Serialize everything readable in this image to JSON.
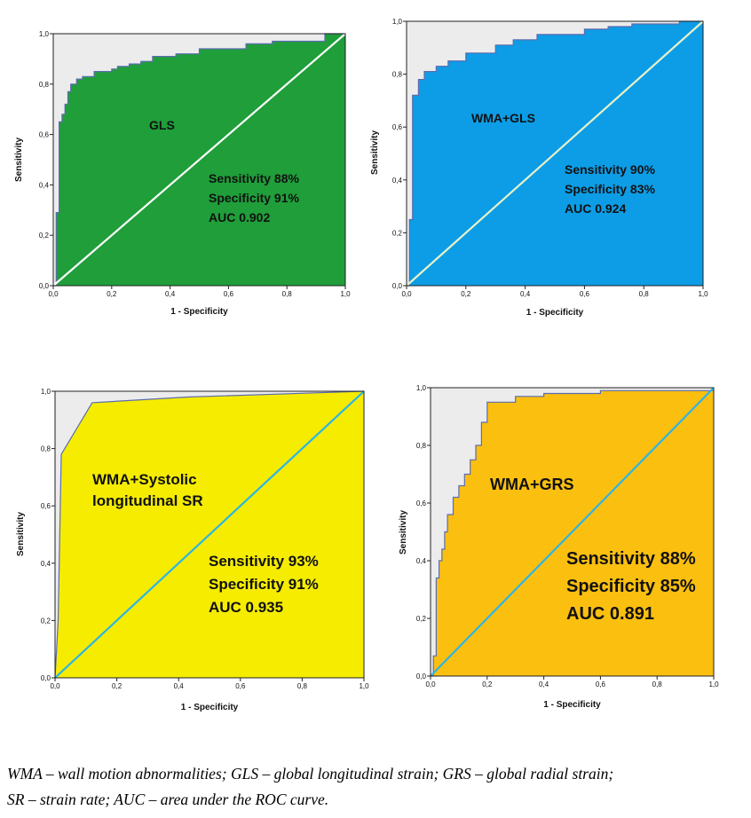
{
  "chart_data": [
    {
      "type": "area",
      "title": "GLS",
      "xlabel": "1 - Specificity",
      "ylabel": "Sensitivity",
      "xlim": [
        0,
        1
      ],
      "ylim": [
        0,
        1
      ],
      "xticks": [
        "0,0",
        "0,2",
        "0,4",
        "0,6",
        "0,8",
        "1,0"
      ],
      "yticks": [
        "0,0",
        "0,2",
        "0,4",
        "0,6",
        "0,8",
        "1,0"
      ],
      "stats": [
        "Sensitivity 88%",
        "Specificity 91%",
        "AUC 0.902"
      ],
      "fill_color": "#1f9e3a",
      "diagonal_color": "#ffffff",
      "series": [
        {
          "x": [
            0,
            0.01,
            0.01,
            0.02,
            0.02,
            0.03,
            0.03,
            0.04,
            0.04,
            0.05,
            0.05,
            0.06,
            0.06,
            0.08,
            0.08,
            0.1,
            0.1,
            0.14,
            0.14,
            0.2,
            0.2,
            0.22,
            0.22,
            0.26,
            0.26,
            0.3,
            0.3,
            0.34,
            0.34,
            0.42,
            0.42,
            0.5,
            0.5,
            0.66,
            0.66,
            0.75,
            0.75,
            0.93,
            0.93,
            1.0
          ],
          "y": [
            0,
            0,
            0.29,
            0.29,
            0.65,
            0.65,
            0.68,
            0.68,
            0.72,
            0.72,
            0.77,
            0.77,
            0.8,
            0.8,
            0.82,
            0.82,
            0.83,
            0.83,
            0.85,
            0.85,
            0.86,
            0.86,
            0.87,
            0.87,
            0.88,
            0.88,
            0.89,
            0.89,
            0.91,
            0.91,
            0.92,
            0.92,
            0.94,
            0.94,
            0.96,
            0.96,
            0.97,
            0.97,
            1.0,
            1.0
          ]
        }
      ]
    },
    {
      "type": "area",
      "title": "WMA+GLS",
      "xlabel": "1 - Specificity",
      "ylabel": "Sensitivity",
      "xlim": [
        0,
        1
      ],
      "ylim": [
        0,
        1
      ],
      "xticks": [
        "0,0",
        "0,2",
        "0,4",
        "0,6",
        "0,8",
        "1,0"
      ],
      "yticks": [
        "0,0",
        "0,2",
        "0,4",
        "0,6",
        "0,8",
        "1,0"
      ],
      "stats": [
        "Sensitivity 90%",
        "Specificity 83%",
        "AUC 0.924"
      ],
      "fill_color": "#0c9de6",
      "diagonal_color": "#e8f1c8",
      "series": [
        {
          "x": [
            0,
            0.01,
            0.01,
            0.02,
            0.02,
            0.04,
            0.04,
            0.06,
            0.06,
            0.1,
            0.1,
            0.14,
            0.14,
            0.2,
            0.2,
            0.3,
            0.3,
            0.36,
            0.36,
            0.44,
            0.44,
            0.6,
            0.6,
            0.68,
            0.68,
            0.76,
            0.76,
            0.92,
            0.92,
            1.0
          ],
          "y": [
            0,
            0,
            0.25,
            0.25,
            0.72,
            0.72,
            0.78,
            0.78,
            0.81,
            0.81,
            0.83,
            0.83,
            0.85,
            0.85,
            0.88,
            0.88,
            0.91,
            0.91,
            0.93,
            0.93,
            0.95,
            0.95,
            0.97,
            0.97,
            0.98,
            0.98,
            0.99,
            0.99,
            1.0,
            1.0
          ]
        }
      ]
    },
    {
      "type": "area",
      "title": "WMA+Systolic longitudinal SR",
      "title_lines": [
        "WMA+Systolic",
        "longitudinal SR"
      ],
      "xlabel": "1 - Specificity",
      "ylabel": "Sensitivity",
      "xlim": [
        0,
        1
      ],
      "ylim": [
        0,
        1
      ],
      "xticks": [
        "0,0",
        "0,2",
        "0,4",
        "0,6",
        "0,8",
        "1,0"
      ],
      "yticks": [
        "0,0",
        "0,2",
        "0,4",
        "0,6",
        "0,8",
        "1,0"
      ],
      "stats": [
        "Sensitivity 93%",
        "Specificity 91%",
        "AUC 0.935"
      ],
      "fill_color": "#f5ec00",
      "diagonal_color": "#2bb5e6",
      "series": [
        {
          "x": [
            0,
            0.01,
            0.02,
            0.12,
            0.43,
            1.0
          ],
          "y": [
            0,
            0.2,
            0.78,
            0.96,
            0.98,
            1.0
          ]
        }
      ]
    },
    {
      "type": "area",
      "title": "WMA+GRS",
      "xlabel": "1 - Specificity",
      "ylabel": "Sensitivity",
      "xlim": [
        0,
        1
      ],
      "ylim": [
        0,
        1
      ],
      "xticks": [
        "0,0",
        "0,2",
        "0,4",
        "0,6",
        "0,8",
        "1,0"
      ],
      "yticks": [
        "0,0",
        "0,2",
        "0,4",
        "0,6",
        "0,8",
        "1,0"
      ],
      "stats": [
        "Sensitivity 88%",
        "Specificity 85%",
        "AUC 0.891"
      ],
      "fill_color": "#fbbf10",
      "diagonal_color": "#2bb5e6",
      "series": [
        {
          "x": [
            0,
            0.01,
            0.01,
            0.02,
            0.02,
            0.03,
            0.03,
            0.04,
            0.04,
            0.05,
            0.05,
            0.06,
            0.06,
            0.08,
            0.08,
            0.1,
            0.1,
            0.12,
            0.12,
            0.14,
            0.14,
            0.16,
            0.16,
            0.18,
            0.18,
            0.2,
            0.2,
            0.3,
            0.3,
            0.4,
            0.4,
            0.6,
            0.6,
            1.0
          ],
          "y": [
            0,
            0,
            0.07,
            0.07,
            0.34,
            0.34,
            0.4,
            0.4,
            0.44,
            0.44,
            0.5,
            0.5,
            0.56,
            0.56,
            0.62,
            0.62,
            0.66,
            0.66,
            0.7,
            0.7,
            0.75,
            0.75,
            0.8,
            0.8,
            0.88,
            0.88,
            0.95,
            0.95,
            0.97,
            0.97,
            0.98,
            0.98,
            0.99,
            0.99
          ]
        }
      ]
    }
  ],
  "caption": {
    "line1": "WMA – wall motion abnormalities; GLS – global longitudinal strain; GRS – global radial strain;",
    "line2": "SR – strain rate; AUC – area under the ROC curve."
  }
}
